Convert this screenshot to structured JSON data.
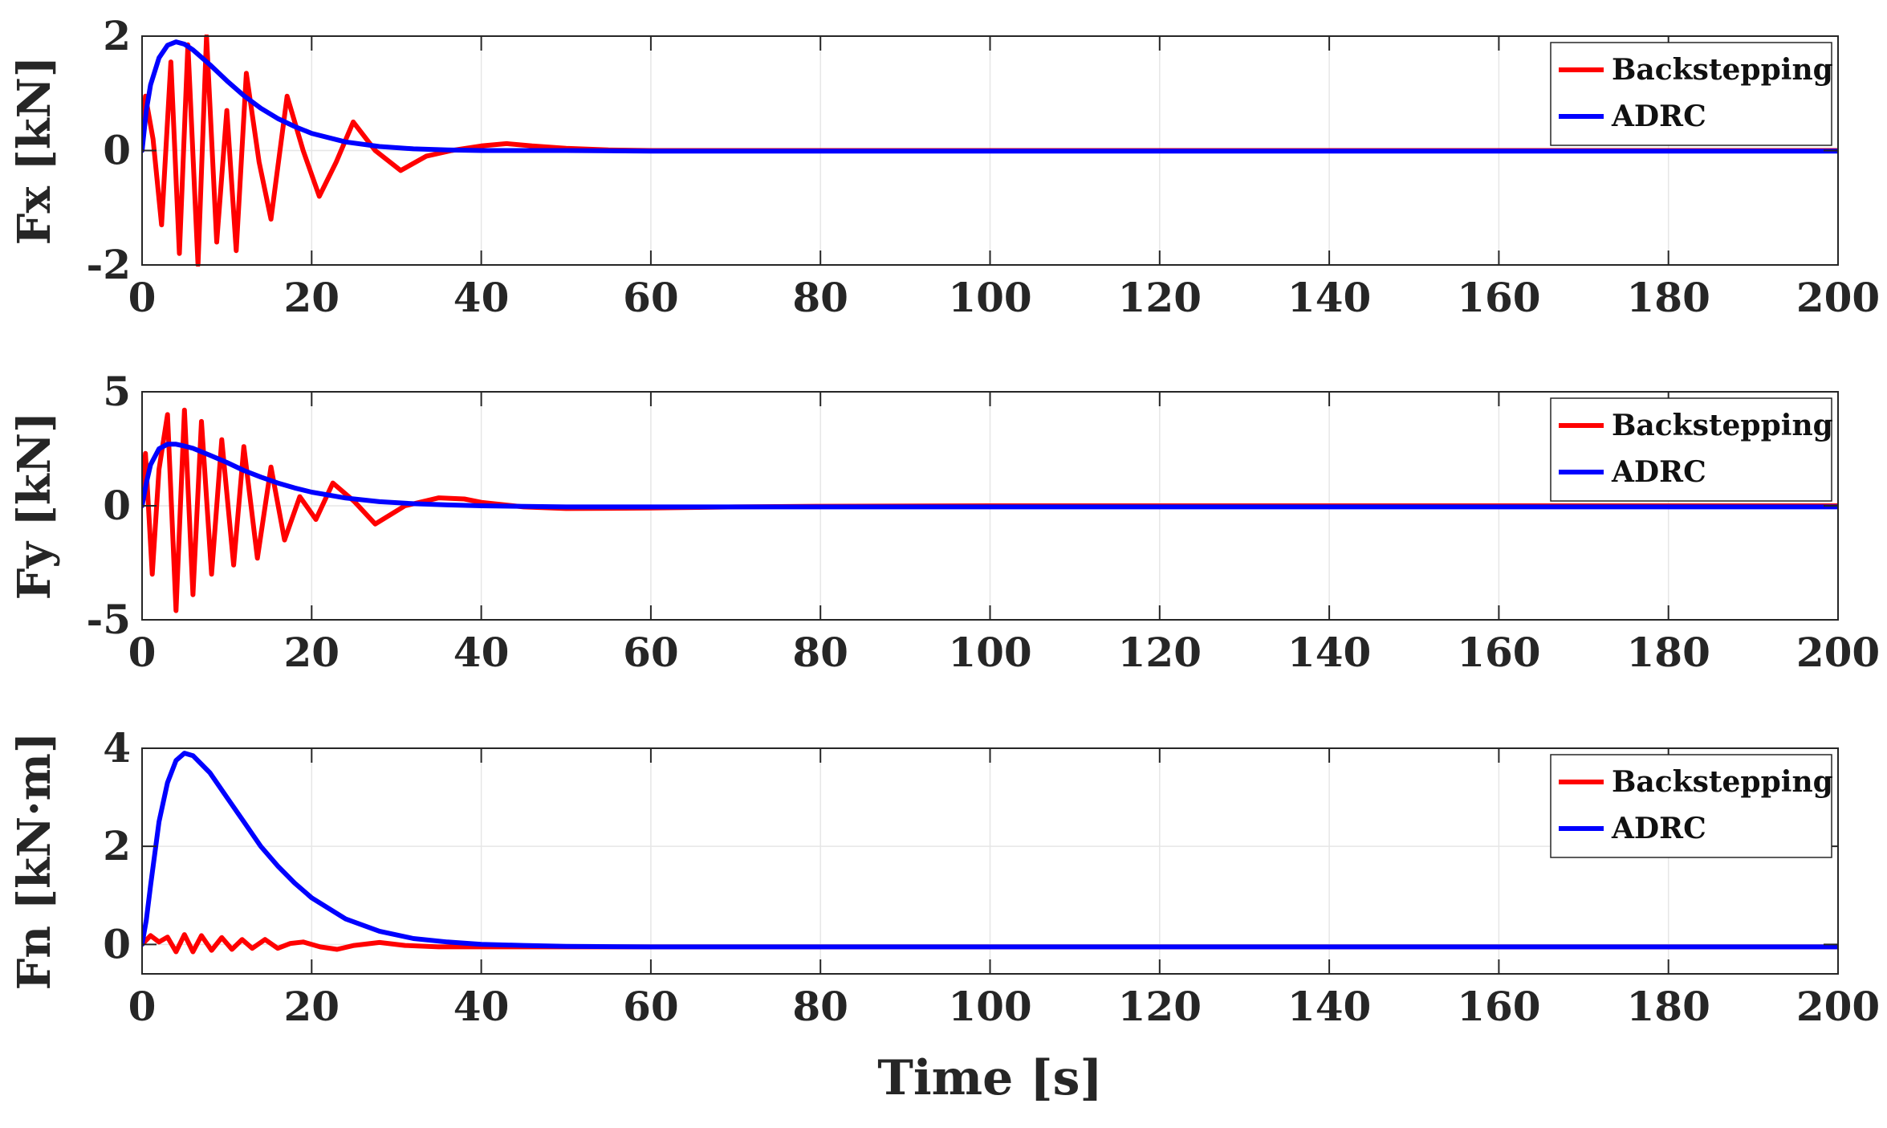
{
  "chart_data": [
    {
      "type": "line",
      "ylabel": "Fx [kN]",
      "xlabel": "",
      "xlim": [
        0,
        200
      ],
      "ylim": [
        -2,
        2
      ],
      "xticks": [
        0,
        20,
        40,
        60,
        80,
        100,
        120,
        140,
        160,
        180,
        200
      ],
      "yticks": [
        -2,
        0,
        2
      ],
      "grid": true,
      "legend_position": "top-right",
      "series": [
        {
          "name": "Backstepping",
          "color": "#ff0000",
          "x": [
            0,
            0.4,
            1.3,
            2.3,
            3.4,
            4.4,
            5.4,
            6.6,
            7.6,
            8.8,
            10.0,
            11.1,
            12.3,
            13.8,
            15.2,
            17.1,
            19.0,
            20.9,
            22.9,
            24.9,
            27.5,
            30.5,
            33.5,
            36.5,
            40.0,
            43.0,
            46.0,
            50.0,
            55.0,
            60.0,
            70.0,
            80.0,
            100.0,
            200.0
          ],
          "y": [
            0,
            0.95,
            0.2,
            -1.3,
            1.55,
            -1.8,
            1.85,
            -2.0,
            2.0,
            -1.6,
            0.7,
            -1.75,
            1.35,
            -0.2,
            -1.2,
            0.95,
            0.0,
            -0.8,
            -0.2,
            0.5,
            0.0,
            -0.35,
            -0.1,
            0.0,
            0.08,
            0.12,
            0.08,
            0.04,
            0.01,
            0.0,
            0.0,
            0.0,
            0.0,
            0.0
          ]
        },
        {
          "name": "ADRC",
          "color": "#0000ff",
          "x": [
            0,
            0.5,
            1.0,
            2.0,
            3.0,
            4.0,
            5.0,
            6.0,
            8.0,
            10.0,
            12.0,
            14.0,
            16.0,
            18.0,
            20.0,
            24.0,
            28.0,
            32.0,
            36.0,
            40.0,
            50.0,
            60.0,
            80.0,
            100.0,
            200.0
          ],
          "y": [
            0,
            0.7,
            1.15,
            1.62,
            1.84,
            1.9,
            1.86,
            1.76,
            1.5,
            1.22,
            0.96,
            0.74,
            0.56,
            0.42,
            0.3,
            0.15,
            0.07,
            0.03,
            0.01,
            0.0,
            0.0,
            -0.01,
            -0.01,
            -0.01,
            -0.01
          ]
        }
      ]
    },
    {
      "type": "line",
      "ylabel": "Fy [kN]",
      "xlabel": "",
      "xlim": [
        0,
        200
      ],
      "ylim": [
        -5,
        5
      ],
      "xticks": [
        0,
        20,
        40,
        60,
        80,
        100,
        120,
        140,
        160,
        180,
        200
      ],
      "yticks": [
        -5,
        0,
        5
      ],
      "grid": true,
      "legend_position": "top-right",
      "series": [
        {
          "name": "Backstepping",
          "color": "#ff0000",
          "x": [
            0,
            0.4,
            1.2,
            2.0,
            3.0,
            4.0,
            5.0,
            6.0,
            7.0,
            8.2,
            9.4,
            10.8,
            12.0,
            13.6,
            15.2,
            16.8,
            18.6,
            20.5,
            22.5,
            25.0,
            27.5,
            31.0,
            35.0,
            38.0,
            40.0,
            45.0,
            50.0,
            60.0,
            70.0,
            80.0,
            100.0,
            200.0
          ],
          "y": [
            0,
            2.3,
            -3.0,
            1.6,
            4.0,
            -4.6,
            4.2,
            -3.9,
            3.7,
            -3.0,
            2.9,
            -2.6,
            2.6,
            -2.3,
            1.7,
            -1.5,
            0.4,
            -0.6,
            1.0,
            0.2,
            -0.8,
            0.0,
            0.35,
            0.3,
            0.15,
            -0.05,
            -0.12,
            -0.1,
            -0.05,
            -0.02,
            0.0,
            0.0
          ]
        },
        {
          "name": "ADRC",
          "color": "#0000ff",
          "x": [
            0,
            0.5,
            1.0,
            2.0,
            3.0,
            4.0,
            5.0,
            6.0,
            8.0,
            10.0,
            12.0,
            14.0,
            16.0,
            18.0,
            20.0,
            24.0,
            28.0,
            32.0,
            36.0,
            40.0,
            50.0,
            60.0,
            80.0,
            100.0,
            200.0
          ],
          "y": [
            0,
            1.0,
            1.8,
            2.5,
            2.7,
            2.7,
            2.62,
            2.52,
            2.22,
            1.9,
            1.55,
            1.26,
            1.0,
            0.78,
            0.6,
            0.34,
            0.18,
            0.09,
            0.04,
            0.0,
            -0.05,
            -0.05,
            -0.05,
            -0.05,
            -0.05
          ]
        }
      ]
    },
    {
      "type": "line",
      "ylabel": "Fn [kN·m]",
      "xlabel": "Time [s]",
      "xlim": [
        0,
        200
      ],
      "ylim": [
        -0.6,
        4
      ],
      "xticks": [
        0,
        20,
        40,
        60,
        80,
        100,
        120,
        140,
        160,
        180,
        200
      ],
      "yticks": [
        0,
        2,
        4
      ],
      "grid": true,
      "legend_position": "top-right",
      "series": [
        {
          "name": "Backstepping",
          "color": "#ff0000",
          "x": [
            0,
            1.0,
            2.0,
            3.0,
            4.0,
            5.0,
            6.0,
            7.0,
            8.2,
            9.4,
            10.6,
            11.8,
            13.0,
            14.5,
            16.0,
            17.5,
            19.0,
            21.0,
            23.0,
            25.0,
            28.0,
            31.0,
            35.0,
            40.0,
            50.0,
            100.0,
            200.0
          ],
          "y": [
            0,
            0.18,
            0.05,
            0.15,
            -0.15,
            0.2,
            -0.15,
            0.18,
            -0.12,
            0.14,
            -0.1,
            0.1,
            -0.08,
            0.1,
            -0.08,
            0.02,
            0.05,
            -0.05,
            -0.1,
            -0.02,
            0.04,
            -0.02,
            -0.05,
            -0.05,
            -0.05,
            -0.05,
            -0.05
          ]
        },
        {
          "name": "ADRC",
          "color": "#0000ff",
          "x": [
            0,
            0.5,
            1.0,
            2.0,
            3.0,
            4.0,
            5.0,
            6.0,
            8.0,
            10.0,
            12.0,
            14.0,
            16.0,
            18.0,
            20.0,
            24.0,
            28.0,
            32.0,
            36.0,
            40.0,
            45.0,
            50.0,
            60.0,
            80.0,
            100.0,
            200.0
          ],
          "y": [
            0,
            0.5,
            1.2,
            2.5,
            3.3,
            3.75,
            3.9,
            3.85,
            3.5,
            3.0,
            2.5,
            2.0,
            1.6,
            1.25,
            0.95,
            0.52,
            0.27,
            0.12,
            0.05,
            0.0,
            -0.02,
            -0.04,
            -0.05,
            -0.05,
            -0.05,
            -0.05
          ]
        }
      ]
    }
  ]
}
